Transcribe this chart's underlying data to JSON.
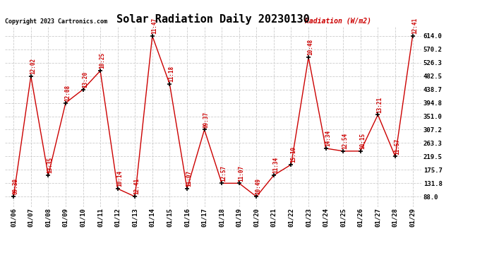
{
  "title": "Solar Radiation Daily 20230130",
  "copyright": "Copyright 2023 Cartronics.com",
  "ylabel": "Radiation (W/m2)",
  "background_color": "#ffffff",
  "grid_color": "#cccccc",
  "line_color": "#cc0000",
  "point_color": "#000000",
  "label_color": "#cc0000",
  "dates": [
    "01/06",
    "01/07",
    "01/08",
    "01/09",
    "01/10",
    "01/11",
    "01/12",
    "01/13",
    "01/14",
    "01/15",
    "01/16",
    "01/17",
    "01/18",
    "01/19",
    "01/20",
    "01/21",
    "01/22",
    "01/23",
    "01/24",
    "01/25",
    "01/26",
    "01/27",
    "01/28",
    "01/29"
  ],
  "values": [
    88.0,
    482.5,
    158.0,
    394.8,
    438.7,
    500.0,
    114.0,
    88.0,
    614.0,
    456.0,
    114.0,
    307.2,
    131.8,
    131.8,
    88.0,
    158.0,
    193.0,
    544.0,
    246.0,
    237.0,
    237.0,
    356.0,
    219.5,
    614.0
  ],
  "labels": [
    "09:39",
    "12:02",
    "13:35",
    "12:08",
    "13:20",
    "10:25",
    "10:14",
    "12:41",
    "11:47",
    "11:18",
    "11:07",
    "09:37",
    "12:57",
    "11:07",
    "10:49",
    "11:34",
    "15:19",
    "10:48",
    "14:34",
    "12:54",
    "10:15",
    "13:21",
    "11:57",
    "12:41"
  ],
  "ytick_labels": [
    "88.0",
    "131.8",
    "175.7",
    "219.5",
    "263.3",
    "307.2",
    "351.0",
    "394.8",
    "438.7",
    "482.5",
    "526.3",
    "570.2",
    "614.0"
  ],
  "ytick_values": [
    88.0,
    131.8,
    175.7,
    219.5,
    263.3,
    307.2,
    351.0,
    394.8,
    438.7,
    482.5,
    526.3,
    570.2,
    614.0
  ],
  "ylim": [
    55.0,
    645.0
  ]
}
